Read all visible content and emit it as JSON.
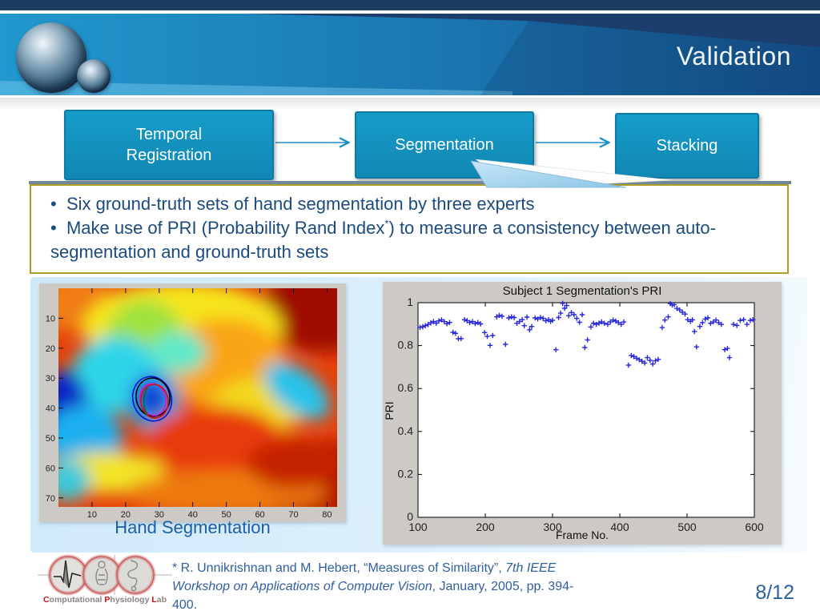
{
  "header": {
    "title": "Validation"
  },
  "flow": {
    "boxes": [
      {
        "label": "Temporal Registration"
      },
      {
        "label": "Segmentation"
      },
      {
        "label": "Stacking"
      }
    ]
  },
  "notes": {
    "bullet_char": "•",
    "bullet1": "Six ground-truth sets of hand segmentation by three experts",
    "bullet2_pre": "Make use of PRI (Probability Rand Index",
    "bullet2_sup": "*",
    "bullet2_post": ") to measure a consistency between auto-segmentation and ground-truth sets"
  },
  "left_figure": {
    "caption": "Hand Segmentation",
    "y_ticks": [
      10,
      20,
      30,
      40,
      50,
      60,
      70
    ],
    "x_ticks": [
      10,
      20,
      30,
      40,
      50,
      60,
      70,
      80
    ],
    "y_range": 73,
    "x_range": 83,
    "contour_colors": [
      "#0019c8",
      "#000000",
      "#cf17cf",
      "#d11212",
      "#0a6a1c"
    ]
  },
  "chart_data": {
    "type": "scatter",
    "title": "Subject 1 Segmentation's PRI",
    "xlabel": "Frame No.",
    "ylabel": "PRI",
    "xlim": [
      100,
      600
    ],
    "ylim": [
      0,
      1
    ],
    "x_ticks": [
      100,
      200,
      300,
      400,
      500,
      600
    ],
    "y_ticks": [
      0,
      0.2,
      0.4,
      0.6,
      0.8,
      1
    ],
    "legend": null,
    "grid": false,
    "marker": "+",
    "marker_color": "#2626dd",
    "points": [
      [
        103,
        0.885
      ],
      [
        107,
        0.888
      ],
      [
        111,
        0.893
      ],
      [
        115,
        0.898
      ],
      [
        119,
        0.906
      ],
      [
        123,
        0.912
      ],
      [
        127,
        0.905
      ],
      [
        131,
        0.915
      ],
      [
        135,
        0.92
      ],
      [
        139,
        0.912
      ],
      [
        143,
        0.902
      ],
      [
        147,
        0.908
      ],
      [
        152,
        0.862
      ],
      [
        156,
        0.857
      ],
      [
        160,
        0.832
      ],
      [
        164,
        0.833
      ],
      [
        169,
        0.921
      ],
      [
        173,
        0.916
      ],
      [
        177,
        0.908
      ],
      [
        181,
        0.912
      ],
      [
        185,
        0.903
      ],
      [
        189,
        0.908
      ],
      [
        193,
        0.901
      ],
      [
        199,
        0.861
      ],
      [
        203,
        0.843
      ],
      [
        207,
        0.801
      ],
      [
        211,
        0.847
      ],
      [
        217,
        0.934
      ],
      [
        221,
        0.941
      ],
      [
        225,
        0.937
      ],
      [
        230,
        0.806
      ],
      [
        235,
        0.929
      ],
      [
        239,
        0.934
      ],
      [
        243,
        0.931
      ],
      [
        247,
        0.904
      ],
      [
        251,
        0.912
      ],
      [
        255,
        0.921
      ],
      [
        258,
        0.893
      ],
      [
        262,
        0.933
      ],
      [
        266,
        0.874
      ],
      [
        269,
        0.889
      ],
      [
        274,
        0.929
      ],
      [
        278,
        0.924
      ],
      [
        282,
        0.931
      ],
      [
        286,
        0.927
      ],
      [
        290,
        0.916
      ],
      [
        294,
        0.921
      ],
      [
        297,
        0.913
      ],
      [
        300,
        0.918
      ],
      [
        305,
        0.781
      ],
      [
        309,
        0.931
      ],
      [
        312,
        0.951
      ],
      [
        315,
        0.997
      ],
      [
        318,
        0.974
      ],
      [
        321,
        0.987
      ],
      [
        324,
        0.939
      ],
      [
        328,
        0.954
      ],
      [
        332,
        0.944
      ],
      [
        336,
        0.927
      ],
      [
        340,
        0.909
      ],
      [
        344,
        0.944
      ],
      [
        348,
        0.791
      ],
      [
        352,
        0.827
      ],
      [
        357,
        0.887
      ],
      [
        361,
        0.904
      ],
      [
        365,
        0.899
      ],
      [
        369,
        0.905
      ],
      [
        373,
        0.911
      ],
      [
        377,
        0.904
      ],
      [
        382,
        0.899
      ],
      [
        386,
        0.911
      ],
      [
        390,
        0.919
      ],
      [
        394,
        0.914
      ],
      [
        398,
        0.907
      ],
      [
        402,
        0.899
      ],
      [
        406,
        0.91
      ],
      [
        413,
        0.709
      ],
      [
        417,
        0.754
      ],
      [
        421,
        0.749
      ],
      [
        425,
        0.741
      ],
      [
        429,
        0.734
      ],
      [
        433,
        0.727
      ],
      [
        437,
        0.719
      ],
      [
        441,
        0.744
      ],
      [
        445,
        0.731
      ],
      [
        449,
        0.714
      ],
      [
        453,
        0.729
      ],
      [
        457,
        0.736
      ],
      [
        463,
        0.884
      ],
      [
        467,
        0.919
      ],
      [
        472,
        0.934
      ],
      [
        475,
        0.996
      ],
      [
        478,
        0.989
      ],
      [
        481,
        0.991
      ],
      [
        485,
        0.973
      ],
      [
        489,
        0.966
      ],
      [
        493,
        0.956
      ],
      [
        497,
        0.947
      ],
      [
        501,
        0.921
      ],
      [
        505,
        0.913
      ],
      [
        508,
        0.92
      ],
      [
        511,
        0.866
      ],
      [
        514,
        0.794
      ],
      [
        519,
        0.889
      ],
      [
        523,
        0.907
      ],
      [
        527,
        0.924
      ],
      [
        531,
        0.929
      ],
      [
        535,
        0.904
      ],
      [
        539,
        0.911
      ],
      [
        543,
        0.919
      ],
      [
        547,
        0.907
      ],
      [
        551,
        0.899
      ],
      [
        556,
        0.781
      ],
      [
        560,
        0.787
      ],
      [
        563,
        0.744
      ],
      [
        569,
        0.899
      ],
      [
        574,
        0.894
      ],
      [
        579,
        0.917
      ],
      [
        584,
        0.921
      ],
      [
        589,
        0.899
      ],
      [
        594,
        0.917
      ],
      [
        598,
        0.921
      ]
    ]
  },
  "footer": {
    "citation_part1": "* R. Unnikrishnan and M. Hebert, “Measures of Similarity”, ",
    "citation_italic": "7th IEEE Workshop on Applications of Computer Vision",
    "citation_part2": ", January, 2005, pp. 394-400.",
    "page": "8/12",
    "logo_words": [
      {
        "initial": "C",
        "rest": "omputational"
      },
      {
        "initial": "P",
        "rest": "hysiology"
      },
      {
        "initial": "L",
        "rest": "ab"
      }
    ]
  }
}
